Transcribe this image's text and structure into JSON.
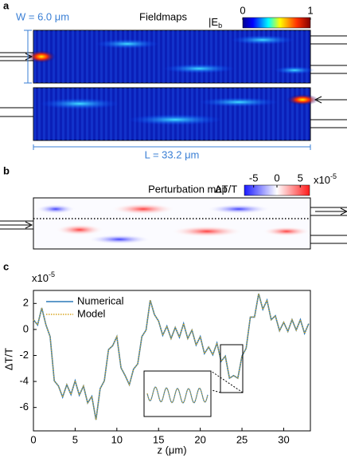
{
  "chart_data": [
    {
      "type": "heatmap",
      "panel_label": "a",
      "title": "Fieldmaps",
      "width_label": "W = 6.0 μm",
      "length_label": "L = 33.2 μm",
      "colorbar_label": "|E",
      "colorbar_label_sub": "b",
      "clim": [
        0,
        1
      ],
      "cticks": [
        0,
        1
      ]
    },
    {
      "type": "heatmap",
      "panel_label": "b",
      "title": "Perturbation map",
      "colorbar_label": "ΔT/T",
      "clim": [
        -7,
        7
      ],
      "cticks": [
        -5,
        0,
        5
      ],
      "multiplier": "x10",
      "multiplier_power": -5
    },
    {
      "type": "line",
      "panel_label": "c",
      "xlabel": "z (μm)",
      "ylabel": "ΔT/T",
      "multiplier": "x10",
      "multiplier_power": -5,
      "xlim": [
        0,
        33.2
      ],
      "ylim": [
        -7.8,
        3
      ],
      "xticks": [
        0,
        5,
        10,
        15,
        20,
        25,
        30
      ],
      "yticks": [
        -6,
        -4,
        -2,
        0,
        2
      ],
      "x": [
        0,
        0.5,
        1,
        1.5,
        2,
        2.5,
        3,
        3.5,
        4,
        4.5,
        5,
        5.5,
        6,
        6.5,
        7,
        7.5,
        8,
        8.5,
        9,
        9.5,
        10,
        10.5,
        11,
        11.5,
        12,
        12.5,
        13,
        13.5,
        14,
        14.5,
        15,
        15.5,
        16,
        16.5,
        17,
        17.5,
        18,
        18.5,
        19,
        19.5,
        20,
        20.5,
        21,
        21.5,
        22,
        22.5,
        23,
        23.5,
        24,
        24.5,
        25,
        25.5,
        26,
        26.5,
        27,
        27.5,
        28,
        28.5,
        29,
        29.5,
        30,
        30.5,
        31,
        31.5,
        32,
        32.5,
        33
      ],
      "series": [
        {
          "name": "Numerical",
          "color": "#2b78b8",
          "values": [
            0.75,
            0.35,
            1.65,
            0.35,
            -0.55,
            -3.95,
            -4.35,
            -5.2,
            -4.25,
            -5.0,
            -3.95,
            -5.05,
            -4.35,
            -5.65,
            -5.15,
            -6.95,
            -4.55,
            -3.95,
            -1.55,
            -1.25,
            -0.55,
            -2.95,
            -3.55,
            -4.25,
            -3.05,
            -2.65,
            -0.55,
            -0.05,
            2.25,
            1.15,
            0.65,
            -0.45,
            0.25,
            -0.7,
            0.15,
            -0.6,
            0.45,
            -0.7,
            -0.05,
            -1.2,
            -0.55,
            -1.85,
            -1.35,
            -1.95,
            -1.05,
            -2.45,
            -2.05,
            -3.75,
            -3.55,
            -3.75,
            -2.05,
            -1.45,
            0.95,
            0.95,
            2.75,
            1.55,
            2.25,
            0.75,
            1.05,
            -0.1,
            0.55,
            -0.15,
            0.75,
            -0.05,
            0.75,
            -0.3,
            0.45
          ]
        },
        {
          "name": "Model",
          "color": "#d9a520",
          "values": [
            0.75,
            0.35,
            1.65,
            0.35,
            -0.55,
            -3.95,
            -4.35,
            -5.2,
            -4.25,
            -5.0,
            -3.95,
            -5.05,
            -4.35,
            -5.65,
            -5.15,
            -6.95,
            -4.55,
            -3.95,
            -1.55,
            -1.25,
            -0.55,
            -2.95,
            -3.55,
            -4.25,
            -3.05,
            -2.65,
            -0.55,
            -0.05,
            2.25,
            1.15,
            0.65,
            -0.45,
            0.25,
            -0.7,
            0.15,
            -0.6,
            0.45,
            -0.7,
            -0.05,
            -1.2,
            -0.55,
            -1.85,
            -1.35,
            -1.95,
            -1.05,
            -2.45,
            -2.05,
            -3.75,
            -3.55,
            -3.75,
            -2.05,
            -1.45,
            0.95,
            0.95,
            2.75,
            1.55,
            2.25,
            0.75,
            1.05,
            -0.1,
            0.55,
            -0.15,
            0.75,
            -0.05,
            0.75,
            -0.3,
            0.45
          ]
        }
      ]
    }
  ]
}
